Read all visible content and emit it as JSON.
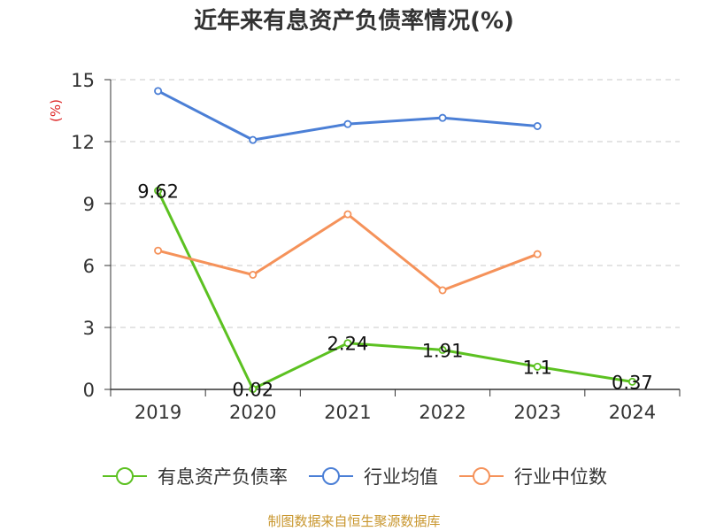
{
  "chart_data": {
    "type": "line",
    "title": "近年来有息资产负债率情况(%)",
    "ylabel": "(%)",
    "categories": [
      "2019",
      "2020",
      "2021",
      "2022",
      "2023",
      "2024"
    ],
    "ylim": [
      0,
      15
    ],
    "yticks": [
      0,
      3,
      6,
      9,
      12,
      15
    ],
    "grid": true,
    "legend_position": "bottom",
    "series": [
      {
        "name": "有息资产负债率",
        "color": "#5cc121",
        "values": [
          9.62,
          0.02,
          2.24,
          1.91,
          1.1,
          0.37
        ],
        "labels": [
          "9.62",
          "0.02",
          "2.24",
          "1.91",
          "1.1",
          "0.37"
        ]
      },
      {
        "name": "行业均值",
        "color": "#4b7fd6",
        "values": [
          14.45,
          12.08,
          12.85,
          13.15,
          12.75,
          null
        ]
      },
      {
        "name": "行业中位数",
        "color": "#f5925a",
        "values": [
          6.72,
          5.55,
          8.48,
          4.8,
          6.55,
          null
        ]
      }
    ]
  },
  "source": "制图数据来自恒生聚源数据库"
}
